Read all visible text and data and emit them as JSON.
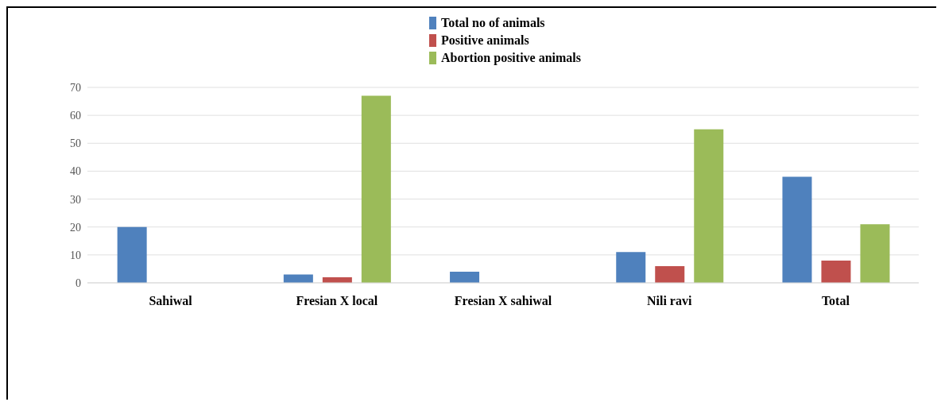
{
  "chart_data": {
    "type": "bar",
    "categories": [
      "Sahiwal",
      "Fresian X local",
      "Fresian X sahiwal",
      "Nili ravi",
      "Total"
    ],
    "series": [
      {
        "name": "Total no of animals",
        "color": "#4f81bd",
        "values": [
          20,
          3,
          4,
          11,
          38
        ]
      },
      {
        "name": "Positive animals",
        "color": "#c0504d",
        "values": [
          0,
          2,
          0,
          6,
          8
        ]
      },
      {
        "name": "Abortion positive animals",
        "color": "#9bbb59",
        "values": [
          0,
          67,
          0,
          55,
          21
        ]
      }
    ],
    "ylim": [
      0,
      70
    ],
    "yticks": [
      0,
      10,
      20,
      30,
      40,
      50,
      60,
      70
    ],
    "grid": "y",
    "legend": "top"
  }
}
